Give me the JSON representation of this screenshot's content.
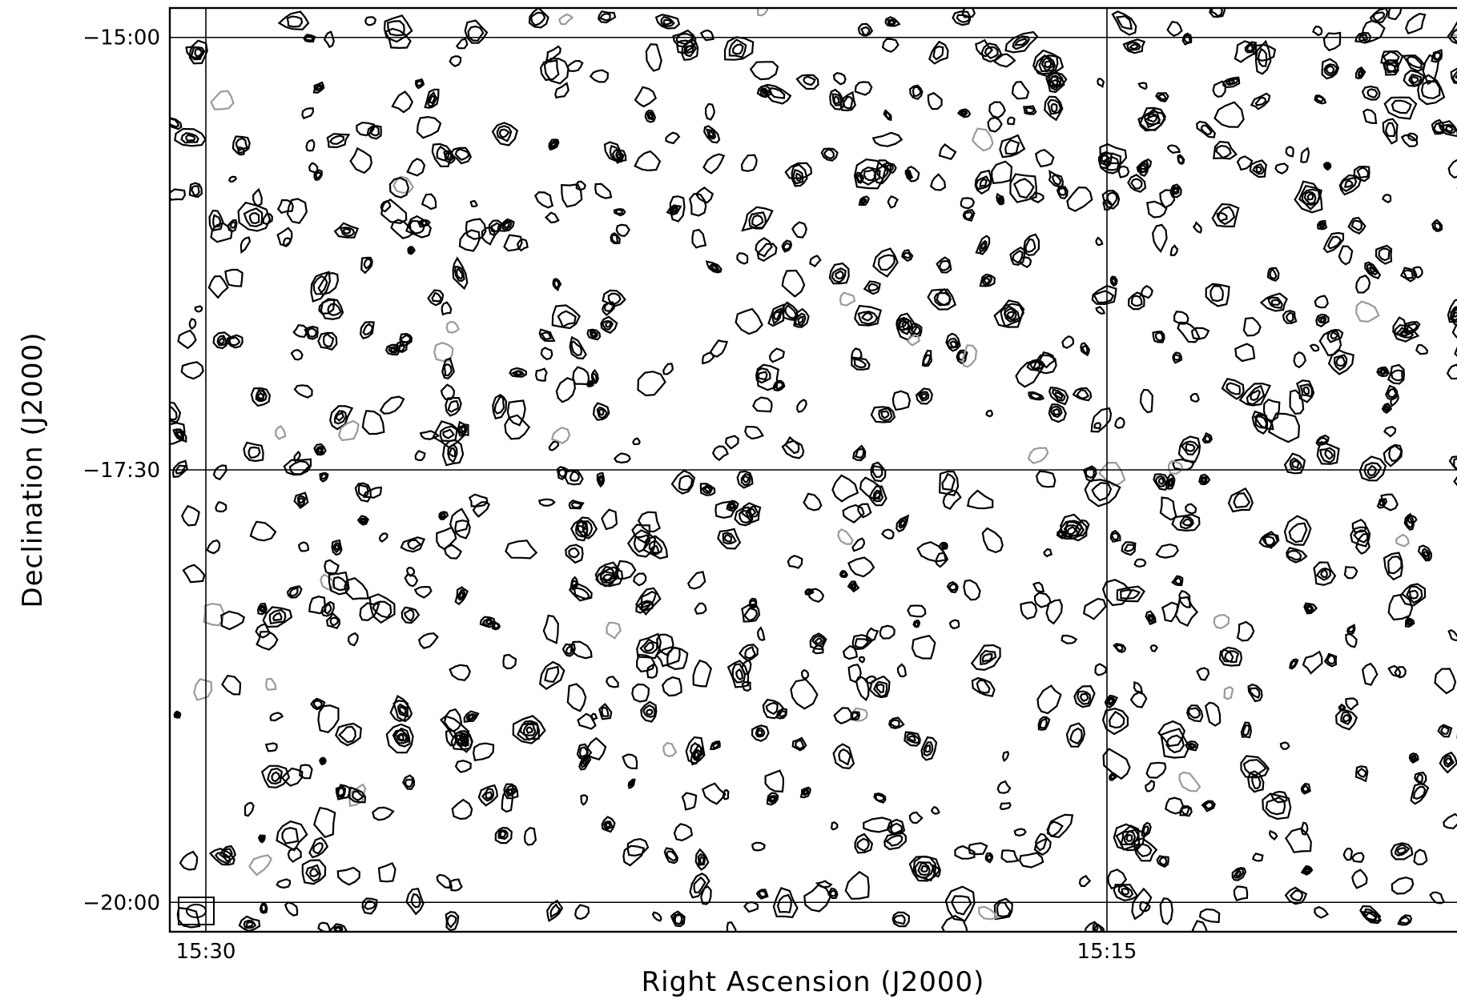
{
  "chart_data": {
    "type": "contour",
    "xlabel": "Right Ascension (J2000)",
    "ylabel": "Declination (J2000)",
    "x_ticks": [
      {
        "label": "15:30",
        "ra_min": 930
      },
      {
        "label": "15:15",
        "ra_min": 915
      }
    ],
    "y_ticks": [
      {
        "label": "−15:00",
        "dec_deg": -15.0
      },
      {
        "label": "−17:30",
        "dec_deg": -17.5
      },
      {
        "label": "−20:00",
        "dec_deg": -20.0
      }
    ],
    "xlim_ra_min": [
      930.6,
      909.0
    ],
    "ylim_dec_deg": [
      -14.83,
      -20.17
    ],
    "grid": true,
    "beam_marker": "bottom-left",
    "colors": {
      "positive_contours": "#000000",
      "negative_contours": "#9a9a9a",
      "grid": "#000000"
    }
  }
}
